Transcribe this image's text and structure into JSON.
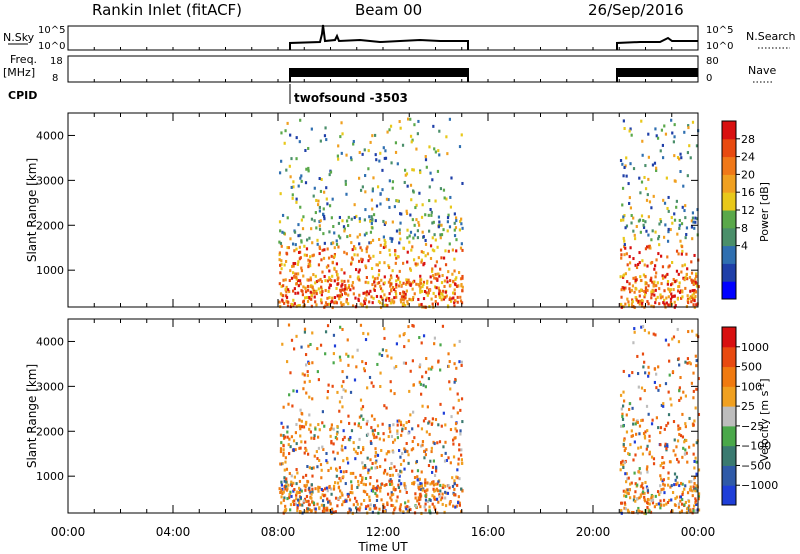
{
  "header": {
    "station": "Rankin Inlet (fitACF)",
    "beam": "Beam 00",
    "date": "26/Sep/2016"
  },
  "top_panels": {
    "nsky": {
      "label": "N.Sky",
      "ticks": [
        "10^5",
        "10^0"
      ]
    },
    "nsearch": {
      "label": "N.Search",
      "ticks": [
        "10^5",
        "10^0"
      ]
    },
    "freq": {
      "label_line1": "Freq.",
      "label_line2": "[MHz]",
      "ticks": [
        "18",
        "8"
      ]
    },
    "nave": {
      "label": "Nave",
      "ticks": [
        "80",
        "0"
      ]
    },
    "cpid": {
      "label": "CPID",
      "program": "twofsound -3503"
    }
  },
  "colors": {
    "power": [
      "#0000ff",
      "#1f3fa8",
      "#2f6fb0",
      "#4a8f6a",
      "#5aa84a",
      "#e8c81a",
      "#f0a020",
      "#f07818",
      "#e84a10",
      "#d81010"
    ],
    "velocity": [
      "#1f3fd8",
      "#2f5aa8",
      "#3a7a70",
      "#4aa84a",
      "#bdbdbd",
      "#f0a020",
      "#f07a10",
      "#e84a10",
      "#d81010"
    ]
  },
  "chart_data": [
    {
      "type": "heatmap",
      "name": "power",
      "xlabel": "Time UT",
      "ylabel": "Slant Range [km]",
      "yticks": [
        "1000",
        "2000",
        "3000",
        "4000"
      ],
      "xlim": [
        0,
        24
      ],
      "ylim": [
        180,
        4500
      ],
      "colorbar": {
        "label": "Power [dB]",
        "ticks": [
          "28",
          "24",
          "20",
          "16",
          "12",
          "8",
          "4"
        ]
      },
      "data_windows_ut": [
        [
          8.0,
          15.0
        ],
        [
          21.0,
          24.0
        ]
      ]
    },
    {
      "type": "heatmap",
      "name": "velocity",
      "xlabel": "Time UT",
      "ylabel": "Slant Range [km]",
      "yticks": [
        "1000",
        "2000",
        "3000",
        "4000"
      ],
      "xlim": [
        0,
        24
      ],
      "ylim": [
        180,
        4500
      ],
      "colorbar": {
        "label": "Velocity [m s^-1]",
        "ticks": [
          "1000",
          "500",
          "100",
          "25",
          "-25",
          "-100",
          "-500",
          "-1000"
        ]
      },
      "data_windows_ut": [
        [
          8.0,
          15.0
        ],
        [
          21.0,
          24.0
        ]
      ]
    }
  ],
  "x_axis": {
    "label": "Time UT",
    "ticks": [
      "00:00",
      "04:00",
      "08:00",
      "12:00",
      "16:00",
      "20:00",
      "00:00"
    ],
    "values": [
      0,
      4,
      8,
      12,
      16,
      20,
      24
    ]
  }
}
